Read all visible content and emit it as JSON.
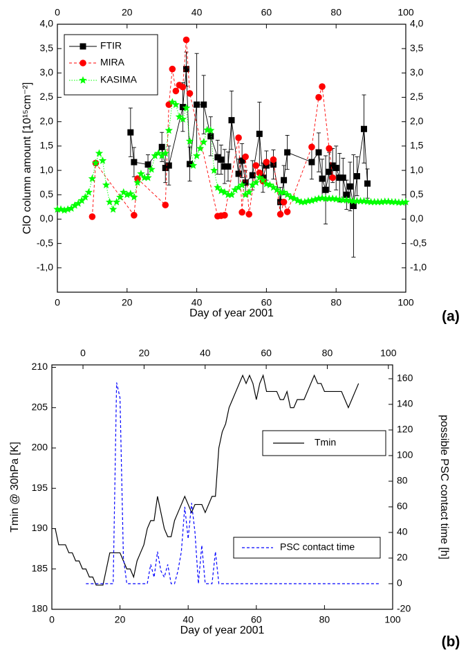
{
  "chart_data": [
    {
      "type": "line",
      "annotation": "(a)",
      "x_label": "Day of year 2001",
      "y_label": "ClO column amount [10¹⁵cm⁻²]",
      "xlim": [
        0,
        100
      ],
      "xticks": [
        0,
        20,
        40,
        60,
        80,
        100
      ],
      "ylim": [
        -1.5,
        4.0
      ],
      "yticks": [
        {
          "value": -1.0,
          "label": "-1,0"
        },
        {
          "value": -0.5,
          "label": "-0,5"
        },
        {
          "value": 0.0,
          "label": "0,0"
        },
        {
          "value": 0.5,
          "label": "0,5"
        },
        {
          "value": 1.0,
          "label": "1,0"
        },
        {
          "value": 1.5,
          "label": "1,5"
        },
        {
          "value": 2.0,
          "label": "2,0"
        },
        {
          "value": 2.5,
          "label": "2,5"
        },
        {
          "value": 3.0,
          "label": "3,0"
        },
        {
          "value": 3.5,
          "label": "3,5"
        },
        {
          "value": 4.0,
          "label": "4,0"
        }
      ],
      "legend": "upper left",
      "series": [
        {
          "name": "FTIR",
          "color": "#000000",
          "marker": "square",
          "dash": "solid",
          "x": [
            21,
            22,
            26,
            30,
            31,
            32,
            36,
            37,
            38,
            40,
            42,
            44,
            46,
            47,
            48,
            49,
            50,
            52,
            53,
            54,
            56,
            58,
            59,
            60,
            62,
            64,
            65,
            66,
            73,
            75,
            76,
            77,
            78,
            79,
            80,
            81,
            82,
            83,
            84,
            85,
            86,
            88,
            89
          ],
          "values": [
            1.78,
            1.17,
            1.12,
            1.48,
            1.05,
            1.1,
            2.3,
            3.08,
            1.13,
            2.35,
            2.35,
            1.7,
            1.27,
            1.22,
            1.08,
            1.08,
            2.03,
            0.93,
            1.2,
            0.75,
            0.9,
            1.75,
            0.85,
            1.1,
            1.12,
            0.35,
            0.8,
            1.37,
            1.17,
            1.37,
            0.83,
            0.6,
            0.97,
            1.1,
            1.05,
            0.85,
            0.85,
            0.5,
            0.67,
            0.27,
            0.88,
            1.85,
            0.73
          ],
          "errors": [
            0.5,
            0.3,
            0.2,
            0.3,
            0.3,
            0.4,
            0.5,
            0.35,
            0.35,
            1.05,
            0.6,
            0.4,
            0.35,
            0.3,
            0.35,
            0.3,
            0.6,
            0.3,
            0.35,
            0.25,
            0.3,
            0.65,
            0.3,
            0.3,
            0.3,
            0.3,
            0.3,
            0.35,
            0.35,
            0.4,
            0.4,
            0.7,
            0.4,
            0.35,
            0.45,
            0.5,
            0.4,
            0.3,
            0.5,
            1.05,
            0.4,
            0.7,
            0.3
          ]
        },
        {
          "name": "MIRA",
          "color": "#ff0000",
          "marker": "circle",
          "dash": "dashed",
          "x": [
            10,
            11,
            22,
            23,
            31,
            32,
            33,
            34,
            35,
            36,
            37,
            38,
            46,
            47,
            48,
            52,
            53,
            54,
            55,
            57,
            58,
            59,
            60,
            62,
            64,
            65,
            66,
            73,
            75,
            76,
            78,
            79
          ],
          "values": [
            0.05,
            1.15,
            0.08,
            0.83,
            0.29,
            2.35,
            3.08,
            2.63,
            2.75,
            2.71,
            3.68,
            2.58,
            0.06,
            0.07,
            0.08,
            1.67,
            0.14,
            1.28,
            0.1,
            1.1,
            0.95,
            0.78,
            1.17,
            1.22,
            0.1,
            0.35,
            0.15,
            1.48,
            2.5,
            2.72,
            1.45,
            0.85
          ]
        },
        {
          "name": "KASIMA",
          "color": "#00ff00",
          "marker": "star",
          "dash": "dotted",
          "x": [
            0,
            1,
            2,
            3,
            4,
            5,
            6,
            7,
            8,
            9,
            10,
            11,
            12,
            13,
            14,
            15,
            16,
            17,
            18,
            19,
            20,
            21,
            22,
            23,
            24,
            25,
            26,
            27,
            28,
            29,
            30,
            31,
            32,
            33,
            34,
            35,
            36,
            37,
            38,
            39,
            40,
            41,
            42,
            43,
            44,
            45,
            46,
            47,
            48,
            49,
            50,
            51,
            52,
            53,
            54,
            55,
            56,
            57,
            58,
            59,
            60,
            61,
            62,
            63,
            64,
            65,
            66,
            67,
            68,
            69,
            70,
            71,
            72,
            73,
            74,
            75,
            76,
            77,
            78,
            79,
            80,
            81,
            82,
            83,
            84,
            85,
            86,
            87,
            88,
            89,
            90,
            91,
            92,
            93,
            94,
            95,
            96,
            97,
            98,
            99,
            100
          ],
          "values": [
            0.2,
            0.2,
            0.18,
            0.2,
            0.22,
            0.28,
            0.32,
            0.38,
            0.45,
            0.55,
            0.83,
            1.15,
            1.35,
            1.2,
            0.7,
            0.35,
            0.2,
            0.35,
            0.45,
            0.55,
            0.5,
            0.52,
            0.45,
            0.75,
            0.93,
            0.85,
            0.85,
            1.02,
            1.3,
            1.35,
            1.3,
            1.35,
            1.82,
            2.4,
            2.35,
            2.1,
            2.05,
            2.28,
            1.6,
            1.1,
            1.3,
            1.45,
            1.58,
            1.83,
            1.82,
            1.0,
            0.65,
            0.58,
            0.55,
            0.5,
            0.5,
            0.6,
            0.65,
            0.7,
            0.5,
            0.55,
            0.7,
            0.75,
            0.85,
            0.8,
            0.72,
            0.7,
            0.65,
            0.6,
            0.55,
            0.55,
            0.5,
            0.45,
            0.42,
            0.38,
            0.35,
            0.35,
            0.37,
            0.38,
            0.4,
            0.42,
            0.43,
            0.42,
            0.42,
            0.42,
            0.41,
            0.4,
            0.39,
            0.39,
            0.38,
            0.37,
            0.37,
            0.37,
            0.37,
            0.36,
            0.35,
            0.35,
            0.35,
            0.35,
            0.36,
            0.36,
            0.35,
            0.35,
            0.34,
            0.34,
            0.35
          ]
        }
      ]
    },
    {
      "type": "line",
      "annotation": "(b)",
      "x_label": "Day of year 2001",
      "y_label": "Tmin @ 30hPa [K]",
      "y2_label": "possible PSC contact time [h]",
      "xlim": [
        0,
        100
      ],
      "xticks": [
        0,
        20,
        40,
        60,
        80,
        100
      ],
      "x2lim": [
        -10.2,
        101.4
      ],
      "x2ticks": [
        0,
        20,
        40,
        60,
        80,
        100
      ],
      "ylim": [
        180,
        210.3
      ],
      "yticks": [
        180,
        185,
        190,
        195,
        200,
        205,
        210
      ],
      "y2lim": [
        -20,
        170.8
      ],
      "y2ticks": [
        -20,
        0,
        20,
        40,
        60,
        80,
        100,
        120,
        140,
        160
      ],
      "series": [
        {
          "name": "Tmin",
          "color": "#000000",
          "dash": "solid",
          "x": [
            1,
            2,
            3,
            4,
            5,
            6,
            7,
            8,
            9,
            10,
            11,
            12,
            13,
            14,
            15,
            16,
            17,
            18,
            19,
            20,
            21,
            22,
            23,
            24,
            25,
            26,
            27,
            28,
            29,
            30,
            31,
            32,
            33,
            34,
            35,
            36,
            37,
            38,
            39,
            40,
            41,
            42,
            43,
            44,
            45,
            46,
            47,
            48,
            49,
            50,
            51,
            52,
            53,
            54,
            55,
            56,
            57,
            58,
            59,
            60,
            61,
            62,
            63,
            64,
            65,
            66,
            67,
            68,
            69,
            70,
            71,
            72,
            73,
            74,
            75,
            76,
            77,
            78,
            79,
            80,
            81,
            82,
            83,
            84,
            85,
            86,
            87,
            88,
            89,
            90
          ],
          "values": [
            190,
            188,
            188,
            188,
            187,
            187,
            186,
            186,
            185,
            185,
            184,
            184,
            183,
            183,
            183,
            185,
            187,
            187,
            187,
            187,
            186,
            185,
            185,
            184,
            186,
            187,
            188,
            190,
            191,
            191,
            194,
            192,
            190,
            189,
            189,
            191,
            192,
            193,
            194,
            193,
            192,
            193,
            193,
            193,
            192,
            193,
            194,
            194,
            200,
            202,
            203,
            205,
            206,
            207,
            208,
            209,
            208,
            209,
            208,
            206,
            208,
            209,
            207,
            207,
            207,
            207,
            206,
            206,
            207,
            205,
            205,
            206,
            206,
            206,
            207,
            208,
            209,
            208,
            208,
            207,
            207,
            207,
            207,
            207,
            207,
            206,
            205,
            206,
            207,
            208
          ]
        },
        {
          "name": "PSC contact time",
          "color": "#0000ff",
          "dash": "dashed",
          "axis": "y2",
          "x": [
            10,
            18,
            19,
            20,
            21,
            22,
            28,
            29,
            30,
            31,
            32,
            33,
            34,
            35,
            36,
            37,
            38,
            39,
            40,
            41,
            42,
            43,
            44,
            45,
            47,
            48,
            49,
            96
          ],
          "values": [
            0,
            0,
            157,
            145,
            20,
            0,
            0,
            15,
            5,
            25,
            10,
            5,
            15,
            0,
            0,
            10,
            25,
            60,
            35,
            63,
            40,
            0,
            30,
            0,
            0,
            25,
            0,
            0
          ]
        }
      ]
    }
  ]
}
